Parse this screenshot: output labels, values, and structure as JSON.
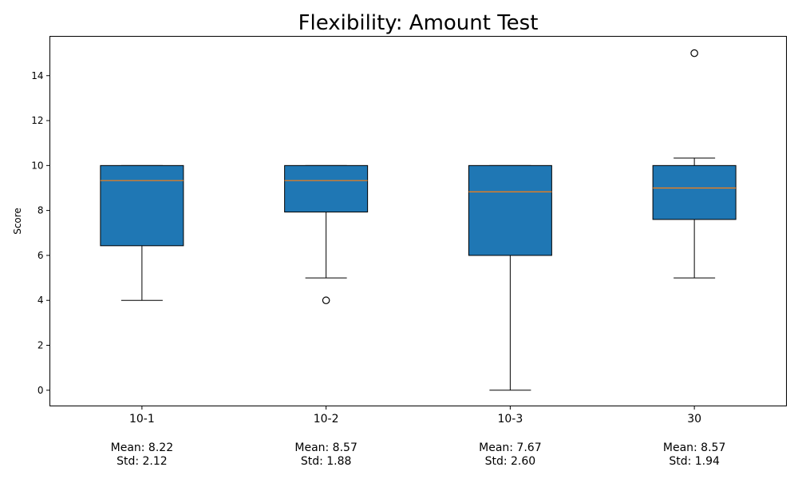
{
  "chart_data": {
    "type": "box",
    "title": "Flexibility: Amount Test",
    "xlabel": "",
    "ylabel": "Score",
    "ylim": [
      -0.7,
      15.75
    ],
    "yticks": [
      0,
      2,
      4,
      6,
      8,
      10,
      12,
      14
    ],
    "grid": false,
    "box_color": "#1f77b4",
    "median_color": "#ff7f0e",
    "categories": [
      "10-1",
      "10-2",
      "10-3",
      "30"
    ],
    "boxes": [
      {
        "category": "10-1",
        "whisker_low": 4,
        "q1": 6.43,
        "median": 9.33,
        "q3": 10,
        "whisker_high": 10,
        "outliers": [],
        "mean_text": "Mean: 8.22",
        "std_text": "Std: 2.12"
      },
      {
        "category": "10-2",
        "whisker_low": 5,
        "q1": 7.93,
        "median": 9.33,
        "q3": 10,
        "whisker_high": 10,
        "outliers": [
          4
        ],
        "mean_text": "Mean: 8.57",
        "std_text": "Std: 1.88"
      },
      {
        "category": "10-3",
        "whisker_low": 0,
        "q1": 6,
        "median": 8.83,
        "q3": 10,
        "whisker_high": 10,
        "outliers": [],
        "mean_text": "Mean: 7.67",
        "std_text": "Std: 2.60"
      },
      {
        "category": "30",
        "whisker_low": 5,
        "q1": 7.6,
        "median": 9,
        "q3": 10,
        "whisker_high": 10.33,
        "outliers": [
          15
        ],
        "mean_text": "Mean: 8.57",
        "std_text": "Std: 1.94"
      }
    ]
  }
}
